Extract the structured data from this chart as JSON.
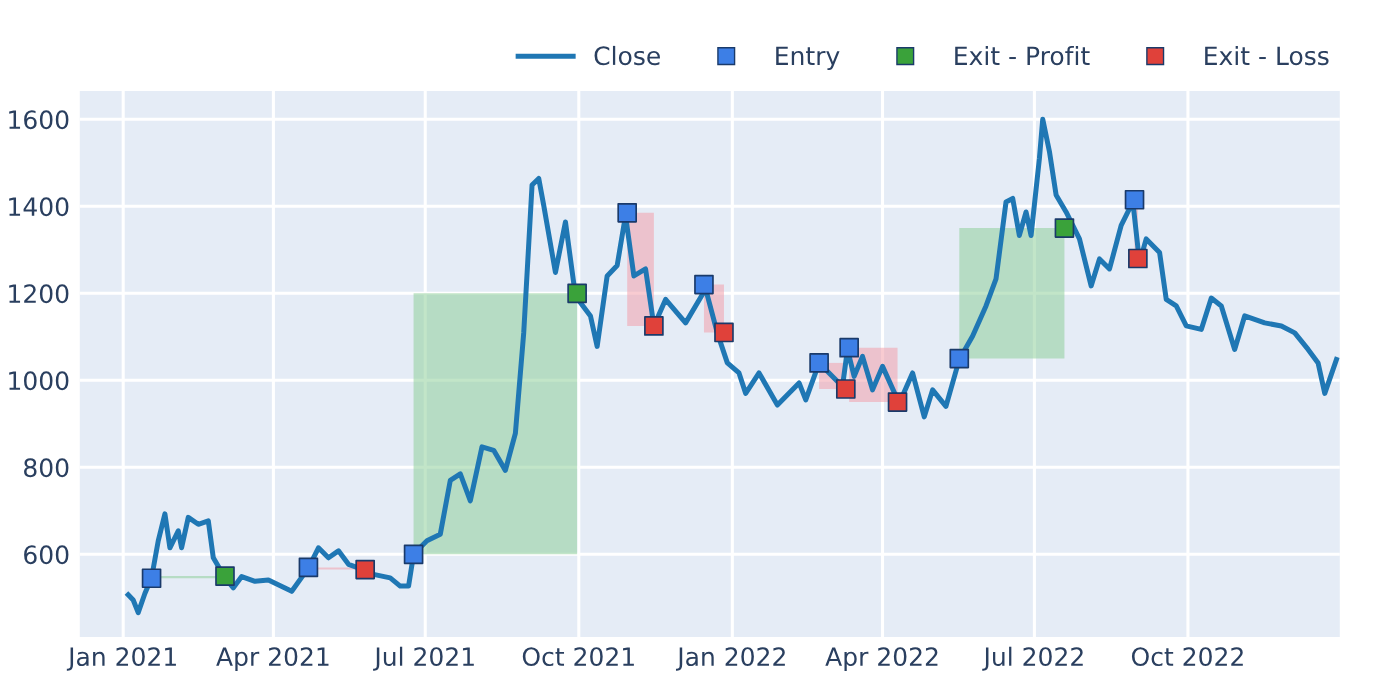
{
  "chart_data": {
    "type": "line",
    "xlim": [
      "2020-12-06",
      "2022-12-31"
    ],
    "xticks": [
      {
        "value": "2021-01-01",
        "label": "Jan 2021"
      },
      {
        "value": "2021-04-01",
        "label": "Apr 2021"
      },
      {
        "value": "2021-07-01",
        "label": "Jul 2021"
      },
      {
        "value": "2021-10-01",
        "label": "Oct 2021"
      },
      {
        "value": "2022-01-01",
        "label": "Jan 2022"
      },
      {
        "value": "2022-04-01",
        "label": "Apr 2022"
      },
      {
        "value": "2022-07-01",
        "label": "Jul 2022"
      },
      {
        "value": "2022-10-01",
        "label": "Oct 2022"
      }
    ],
    "ylim": [
      410,
      1665
    ],
    "yticks": [
      600,
      800,
      1000,
      1200,
      1400,
      1600
    ],
    "grid": true,
    "legend": "top right",
    "series": [
      {
        "type": "area",
        "color": "#8fcf9a",
        "x": [
          "2021-01-18",
          "2021-01-18",
          "2021-03-03",
          "2021-03-03"
        ],
        "values": [
          545,
          550,
          550,
          545
        ]
      },
      {
        "type": "area",
        "color": "#f2a0ac",
        "x": [
          "2021-04-22",
          "2021-04-22",
          "2021-05-26",
          "2021-05-26"
        ],
        "values": [
          565,
          570,
          570,
          565
        ]
      },
      {
        "type": "area",
        "color": "#8fcf9a",
        "x": [
          "2021-06-24",
          "2021-06-24",
          "2021-09-30",
          "2021-09-30"
        ],
        "values": [
          600,
          1200,
          1200,
          600
        ]
      },
      {
        "type": "area",
        "color": "#f2a0ac",
        "x": [
          "2021-10-30",
          "2021-10-30",
          "2021-11-15",
          "2021-11-15"
        ],
        "values": [
          1125,
          1385,
          1385,
          1125
        ]
      },
      {
        "type": "area",
        "color": "#f2a0ac",
        "x": [
          "2021-12-15",
          "2021-12-15",
          "2021-12-27",
          "2021-12-27"
        ],
        "values": [
          1110,
          1220,
          1220,
          1110
        ]
      },
      {
        "type": "area",
        "color": "#f2a0ac",
        "x": [
          "2022-02-22",
          "2022-02-22",
          "2022-03-10",
          "2022-03-10"
        ],
        "values": [
          980,
          1040,
          1040,
          980
        ]
      },
      {
        "type": "area",
        "color": "#f2a0ac",
        "x": [
          "2022-03-12",
          "2022-03-12",
          "2022-04-10",
          "2022-04-10"
        ],
        "values": [
          950,
          1075,
          1075,
          950
        ]
      },
      {
        "type": "area",
        "color": "#8fcf9a",
        "x": [
          "2022-05-17",
          "2022-05-17",
          "2022-07-19",
          "2022-07-19"
        ],
        "values": [
          1050,
          1350,
          1350,
          1050
        ]
      },
      {
        "type": "area",
        "color": "#f2a0ac",
        "x": [
          "2022-08-30",
          "2022-08-30",
          "2022-09-01",
          "2022-09-01"
        ],
        "values": [
          1280,
          1415,
          1415,
          1280
        ]
      },
      {
        "name": "Close",
        "color": "#1f77b4",
        "marker": "none",
        "x": [
          "2021-01-04",
          "2021-01-07",
          "2021-01-10",
          "2021-01-14",
          "2021-01-18",
          "2021-01-22",
          "2021-01-26",
          "2021-01-29",
          "2021-02-03",
          "2021-02-05",
          "2021-02-09",
          "2021-02-15",
          "2021-02-21",
          "2021-02-24",
          "2021-03-03",
          "2021-03-08",
          "2021-03-13",
          "2021-03-21",
          "2021-03-29",
          "2021-04-12",
          "2021-04-22",
          "2021-04-28",
          "2021-05-04",
          "2021-05-10",
          "2021-05-16",
          "2021-05-24",
          "2021-05-31",
          "2021-06-10",
          "2021-06-16",
          "2021-06-21",
          "2021-06-24",
          "2021-07-02",
          "2021-07-10",
          "2021-07-16",
          "2021-07-22",
          "2021-07-28",
          "2021-08-04",
          "2021-08-11",
          "2021-08-18",
          "2021-08-24",
          "2021-08-29",
          "2021-09-03",
          "2021-09-07",
          "2021-09-10",
          "2021-09-17",
          "2021-09-23",
          "2021-09-29",
          "2021-10-08",
          "2021-10-12",
          "2021-10-18",
          "2021-10-24",
          "2021-10-29",
          "2021-11-03",
          "2021-11-10",
          "2021-11-15",
          "2021-11-22",
          "2021-12-04",
          "2021-12-16",
          "2021-12-23",
          "2021-12-29",
          "2022-01-05",
          "2022-01-09",
          "2022-01-17",
          "2022-01-28",
          "2022-02-10",
          "2022-02-14",
          "2022-02-22",
          "2022-03-08",
          "2022-03-11",
          "2022-03-15",
          "2022-03-20",
          "2022-03-26",
          "2022-04-01",
          "2022-04-11",
          "2022-04-19",
          "2022-04-26",
          "2022-05-01",
          "2022-05-09",
          "2022-05-17",
          "2022-05-25",
          "2022-06-02",
          "2022-06-08",
          "2022-06-14",
          "2022-06-18",
          "2022-06-22",
          "2022-06-26",
          "2022-06-29",
          "2022-07-04",
          "2022-07-06",
          "2022-07-10",
          "2022-07-14",
          "2022-07-20",
          "2022-07-28",
          "2022-08-04",
          "2022-08-09",
          "2022-08-15",
          "2022-08-22",
          "2022-08-29",
          "2022-09-02",
          "2022-09-06",
          "2022-09-14",
          "2022-09-18",
          "2022-09-24",
          "2022-09-30",
          "2022-10-09",
          "2022-10-15",
          "2022-10-21",
          "2022-10-29",
          "2022-11-04",
          "2022-11-16",
          "2022-11-26",
          "2022-12-04",
          "2022-12-12",
          "2022-12-18",
          "2022-12-22",
          "2022-12-29"
        ],
        "values": [
          507,
          495,
          466,
          510,
          546,
          631,
          693,
          615,
          654,
          615,
          685,
          669,
          677,
          592,
          546,
          523,
          549,
          538,
          541,
          515,
          569,
          615,
          592,
          608,
          577,
          566,
          554,
          546,
          527,
          527,
          600,
          631,
          646,
          770,
          785,
          723,
          847,
          839,
          793,
          878,
          1109,
          1449,
          1464,
          1402,
          1248,
          1364,
          1194,
          1148,
          1078,
          1240,
          1264,
          1379,
          1240,
          1256,
          1125,
          1186,
          1132,
          1210,
          1109,
          1040,
          1017,
          970,
          1017,
          943,
          994,
          955,
          1040,
          986,
          1071,
          1009,
          1055,
          978,
          1032,
          947,
          1017,
          916,
          978,
          940,
          1048,
          1102,
          1171,
          1233,
          1410,
          1418,
          1333,
          1387,
          1333,
          1510,
          1600,
          1526,
          1426,
          1387,
          1325,
          1217,
          1279,
          1256,
          1356,
          1410,
          1271,
          1325,
          1294,
          1186,
          1171,
          1125,
          1117,
          1189,
          1171,
          1071,
          1148,
          1132,
          1125,
          1109,
          1071,
          1040,
          970,
          1048
        ]
      },
      {
        "name": "Entry",
        "type": "scatter",
        "color": "#3d7fe6",
        "marker": "square",
        "x": [
          "2021-01-18",
          "2021-04-22",
          "2021-06-24",
          "2021-10-30",
          "2021-12-15",
          "2022-02-22",
          "2022-03-12",
          "2022-05-17",
          "2022-08-30"
        ],
        "values": [
          545,
          570,
          600,
          1385,
          1220,
          1040,
          1075,
          1050,
          1415
        ]
      },
      {
        "name": "Exit - Profit",
        "type": "scatter",
        "color": "#3aa23a",
        "marker": "square",
        "x": [
          "2021-03-03",
          "2021-09-30",
          "2022-07-19"
        ],
        "values": [
          550,
          1200,
          1350
        ]
      },
      {
        "name": "Exit - Loss",
        "type": "scatter",
        "color": "#e0413a",
        "marker": "square",
        "x": [
          "2021-05-26",
          "2021-11-15",
          "2021-12-27",
          "2022-03-10",
          "2022-04-10",
          "2022-09-01"
        ],
        "values": [
          565,
          1125,
          1110,
          980,
          950,
          1280
        ]
      }
    ]
  }
}
